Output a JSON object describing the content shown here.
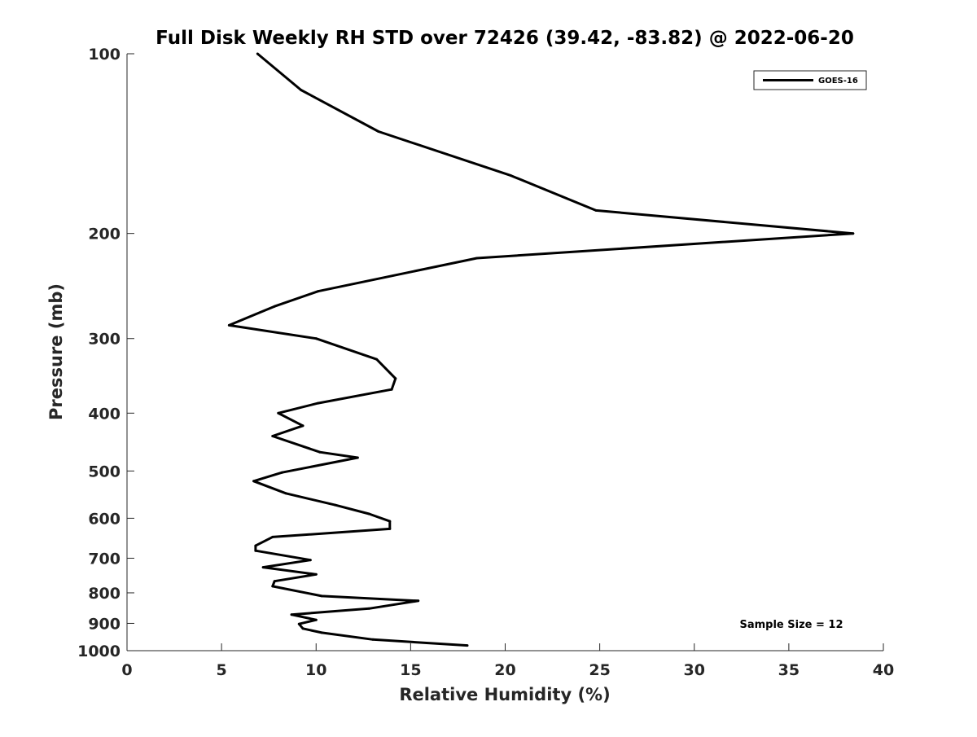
{
  "chart_data": {
    "type": "line",
    "title": "Full Disk Weekly RH STD over 72426 (39.42, -83.82) @ 2022-06-20",
    "xlabel": "Relative Humidity (%)",
    "ylabel": "Pressure (mb)",
    "xlim": [
      0,
      40
    ],
    "ylim": [
      100,
      1000
    ],
    "y_scale": "log",
    "y_reversed": true,
    "grid": false,
    "x_ticks": [
      0,
      5,
      10,
      15,
      20,
      25,
      30,
      35,
      40
    ],
    "x_tick_labels": [
      "0",
      "5",
      "10",
      "15",
      "20",
      "25",
      "30",
      "35",
      "40"
    ],
    "y_ticks": [
      100,
      200,
      300,
      400,
      500,
      600,
      700,
      800,
      900,
      1000
    ],
    "y_tick_labels": [
      "100",
      "200",
      "300",
      "400",
      "500",
      "600",
      "700",
      "800",
      "900",
      "1000"
    ],
    "legend_position": "top-right",
    "series": [
      {
        "name": "GOES-16",
        "color": "#000000",
        "points": [
          [
            6.9,
            100
          ],
          [
            9.2,
            115
          ],
          [
            13.3,
            135
          ],
          [
            20.3,
            160
          ],
          [
            24.8,
            183
          ],
          [
            38.4,
            200
          ],
          [
            18.5,
            220
          ],
          [
            10.1,
            250
          ],
          [
            7.8,
            265
          ],
          [
            5.4,
            285
          ],
          [
            10.0,
            300
          ],
          [
            13.2,
            325
          ],
          [
            14.2,
            350
          ],
          [
            14.0,
            365
          ],
          [
            10.1,
            385
          ],
          [
            8.0,
            400
          ],
          [
            9.3,
            420
          ],
          [
            7.7,
            437
          ],
          [
            10.2,
            465
          ],
          [
            12.2,
            475
          ],
          [
            8.2,
            503
          ],
          [
            6.7,
            520
          ],
          [
            8.4,
            545
          ],
          [
            11.0,
            570
          ],
          [
            12.8,
            590
          ],
          [
            13.9,
            607
          ],
          [
            13.9,
            625
          ],
          [
            7.7,
            645
          ],
          [
            6.8,
            667
          ],
          [
            6.8,
            680
          ],
          [
            9.7,
            705
          ],
          [
            7.2,
            725
          ],
          [
            10.0,
            745
          ],
          [
            7.8,
            765
          ],
          [
            7.7,
            780
          ],
          [
            10.3,
            810
          ],
          [
            15.4,
            825
          ],
          [
            12.8,
            850
          ],
          [
            8.7,
            870
          ],
          [
            10.0,
            888
          ],
          [
            9.1,
            902
          ],
          [
            9.3,
            918
          ],
          [
            10.3,
            933
          ],
          [
            13.0,
            958
          ],
          [
            18.0,
            980
          ]
        ]
      }
    ],
    "annotations": [
      "Sample Size = 12"
    ]
  }
}
